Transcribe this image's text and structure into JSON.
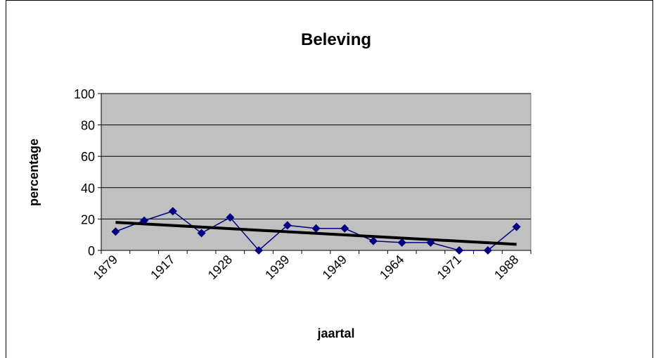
{
  "chart_data": {
    "type": "line",
    "title": "Beleving",
    "x_label": "jaartal",
    "y_label": "percentage",
    "categories": [
      "1879",
      null,
      "1917",
      null,
      "1928",
      null,
      "1939",
      null,
      "1949",
      null,
      "1964",
      null,
      "1971",
      null,
      "1988"
    ],
    "series": [
      {
        "color": "#000080",
        "values": [
          12,
          19,
          25,
          11,
          21,
          0,
          16,
          14,
          14,
          6,
          5,
          5,
          0,
          0,
          15
        ]
      }
    ],
    "trendline": {
      "color": "#000000"
    },
    "ylim": [
      0,
      100
    ],
    "yticks": [
      0,
      20,
      40,
      60,
      80,
      100
    ],
    "grid": true,
    "plot_background": "#c0c0c0"
  }
}
